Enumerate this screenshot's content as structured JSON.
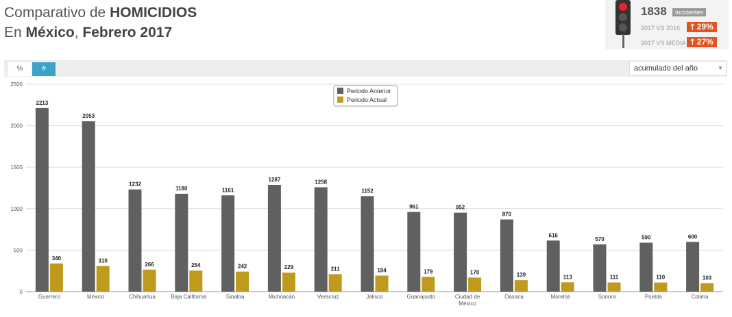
{
  "header": {
    "line1_prefix": "Comparativo de ",
    "line1_bold": "HOMICIDIOS",
    "line2_prefix": "En ",
    "line2_bold1": "México",
    "line2_mid": ", ",
    "line2_bold2": "Febrero 2017"
  },
  "stats": {
    "count": "1838",
    "count_label": "Incidentes",
    "rows": [
      {
        "label": "2017 VS 2016",
        "value": "29%",
        "arrow": "🡑"
      },
      {
        "label": "2017 VS MEDIA",
        "value": "27%",
        "arrow": "🡑"
      }
    ]
  },
  "toolbar": {
    "pct_label": "%",
    "num_label": "#",
    "select_value": "acumulado del año",
    "select_arrow": "▼"
  },
  "colors": {
    "anterior": "#606060",
    "actual": "#bf9a1c",
    "accent": "#3aa4c8",
    "alert": "#e8501e"
  },
  "chart_data": {
    "type": "bar",
    "categories": [
      "Guerrero",
      "México",
      "Chihuahua",
      "Baja California",
      "Sinaloa",
      "Michoacán",
      "Veracruz",
      "Jalisco",
      "Guanajuato",
      "Ciudad de México",
      "Oaxaca",
      "Morelos",
      "Sonora",
      "Puebla",
      "Colima"
    ],
    "series": [
      {
        "name": "Periodo Anterior",
        "values": [
          2213,
          2053,
          1232,
          1180,
          1161,
          1287,
          1258,
          1152,
          961,
          952,
          870,
          616,
          570,
          590,
          600
        ]
      },
      {
        "name": "Periodo Actual",
        "values": [
          340,
          310,
          266,
          254,
          242,
          229,
          211,
          194,
          179,
          170,
          139,
          113,
          111,
          110,
          103
        ]
      }
    ],
    "ylim": [
      0,
      2500
    ],
    "yticks": [
      0,
      500,
      1000,
      1500,
      2000,
      2500
    ],
    "grid": true,
    "legend": "top-center"
  }
}
